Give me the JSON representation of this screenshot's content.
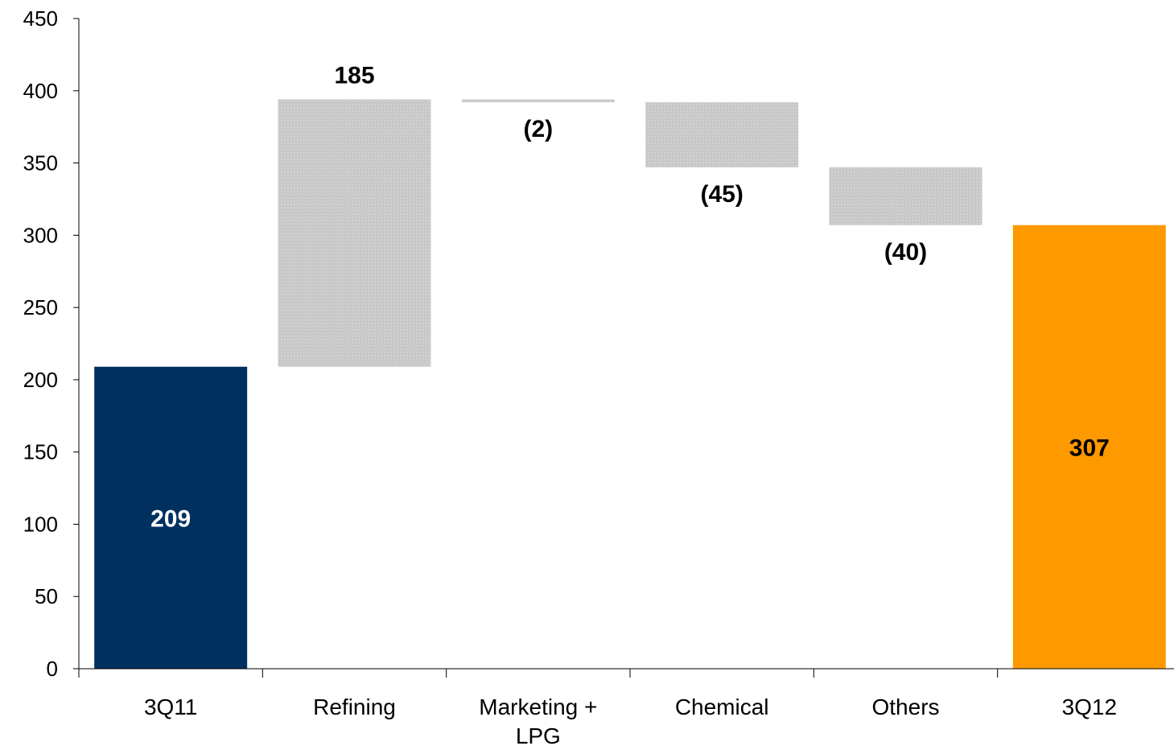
{
  "chart_data": {
    "type": "bar",
    "subtype": "waterfall",
    "title": "",
    "xlabel": "",
    "ylabel": "",
    "ylim": [
      0,
      450
    ],
    "yticks": [
      0,
      50,
      100,
      150,
      200,
      250,
      300,
      350,
      400,
      450
    ],
    "ytick_labels": [
      "0",
      "50",
      "100",
      "150",
      "200",
      "250",
      "300",
      "350",
      "400",
      "450"
    ],
    "grid": false,
    "legend": "none",
    "categories": [
      [
        "3Q11"
      ],
      [
        "Refining"
      ],
      [
        "Marketing +",
        "LPG"
      ],
      [
        "Chemical"
      ],
      [
        "Others"
      ],
      [
        "3Q12"
      ]
    ],
    "bars": [
      {
        "kind": "total",
        "start": 0,
        "end": 209,
        "label": "209",
        "color": "#003060",
        "label_color": "#ffffff"
      },
      {
        "kind": "delta",
        "start": 209,
        "end": 394,
        "value": 185,
        "label": "185",
        "color": "#c8c8c8",
        "label_color": "#000000"
      },
      {
        "kind": "delta",
        "start": 394,
        "end": 392,
        "value": -2,
        "label": "(2)",
        "color": "#c8c8c8",
        "label_color": "#000000"
      },
      {
        "kind": "delta",
        "start": 392,
        "end": 347,
        "value": -45,
        "label": "(45)",
        "color": "#c8c8c8",
        "label_color": "#000000"
      },
      {
        "kind": "delta",
        "start": 347,
        "end": 307,
        "value": -40,
        "label": "(40)",
        "color": "#c8c8c8",
        "label_color": "#000000"
      },
      {
        "kind": "total",
        "start": 0,
        "end": 307,
        "label": "307",
        "color": "#ff9900",
        "label_color": "#000000"
      }
    ],
    "colors": {
      "axis": "#000000",
      "pattern_dot": "#d8d8d8"
    }
  }
}
